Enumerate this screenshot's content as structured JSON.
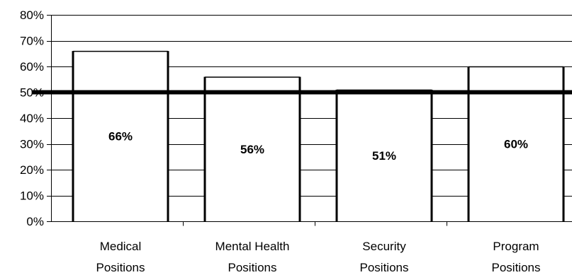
{
  "chart_data": {
    "type": "bar",
    "title": "",
    "xlabel": "",
    "ylabel": "",
    "categories": [
      [
        "Medical",
        "Positions"
      ],
      [
        "Mental Health",
        "Positions"
      ],
      [
        "Security",
        "Positions"
      ],
      [
        "Program",
        "Positions"
      ]
    ],
    "values": [
      66,
      56,
      51,
      60
    ],
    "value_labels": [
      "66%",
      "56%",
      "51%",
      "60%"
    ],
    "ylim": [
      0,
      80
    ],
    "yticks": [
      0,
      10,
      20,
      30,
      40,
      50,
      60,
      70,
      80
    ],
    "ytick_labels": [
      "0%",
      "10%",
      "20%",
      "30%",
      "40%",
      "50%",
      "60%",
      "70%",
      "80%"
    ],
    "grid": true,
    "reference_line": {
      "value": 50
    },
    "legend": "none",
    "colors": {
      "bar_fill": "#ffffff",
      "bar_stroke": "#000000",
      "grid": "#000000",
      "reference_line": "#000000"
    }
  }
}
